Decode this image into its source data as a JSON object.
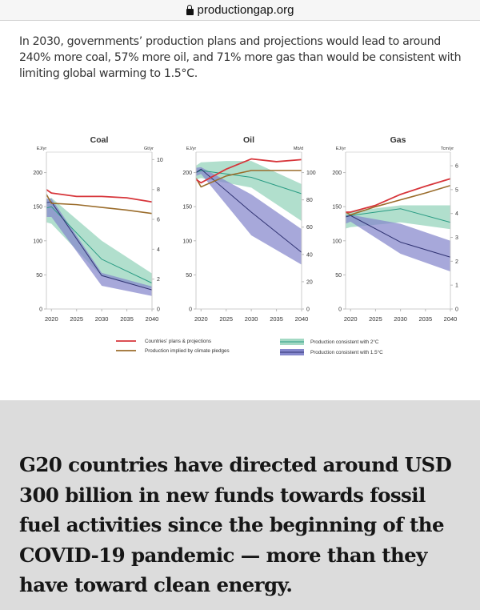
{
  "browser": {
    "url": "productiongap.org",
    "lock_icon": "lock-icon"
  },
  "intro_text": "In 2030, governments’ production plans and projections would lead to around 240% more coal, 57% more oil, and 71% more gas than would be consistent with limiting global warming to 1.5°C.",
  "headline": "G20 countries have directed around USD 300 billion in new funds towards fossil fuel activities since the beginning of the COVID-19 pandemic — more than they have toward clean energy.",
  "colors": {
    "plans": "#d7363b",
    "pledges": "#9b6d2c",
    "band_2c": "#a3d9c4",
    "line_2c": "#2a9c84",
    "band_15c": "#8587cc",
    "line_15c": "#2f3272",
    "gray_section": "#dcdcdc"
  },
  "legend": [
    {
      "key": "plans",
      "label": "Countries’ plans & projections"
    },
    {
      "key": "pledges",
      "label": "Production implied by climate pledges"
    },
    {
      "key": "2c",
      "label": "Production consistent with 2°C"
    },
    {
      "key": "15c",
      "label": "Production consistent with 1.5°C"
    }
  ],
  "chart_data": [
    {
      "type": "line",
      "title": "Coal",
      "left_unit": "EJ/yr",
      "right_unit": "Gt/yr",
      "xticks": [
        "2020",
        "2025",
        "2030",
        "2035",
        "2040"
      ],
      "xlim": [
        2019,
        2040
      ],
      "yticks": [
        0,
        50,
        100,
        150,
        200
      ],
      "ylim": [
        0,
        230
      ],
      "right_ticks": [
        0,
        2,
        4,
        6,
        8,
        10
      ],
      "right_to_left_factor": 21.9,
      "plans": {
        "x": [
          2019,
          2020,
          2025,
          2030,
          2035,
          2040
        ],
        "y": [
          175,
          170,
          165,
          165,
          163,
          157
        ]
      },
      "pledges": {
        "x": [
          2019,
          2020,
          2025,
          2030,
          2035,
          2040
        ],
        "y": [
          168,
          155,
          153,
          149,
          145,
          140
        ]
      },
      "c2": {
        "x": [
          2019,
          2020,
          2030,
          2040
        ],
        "y": [
          148,
          150,
          73,
          38
        ],
        "upper": [
          160,
          163,
          100,
          52
        ],
        "lower": [
          127,
          125,
          48,
          30
        ]
      },
      "c15": {
        "x": [
          2019,
          2020,
          2030,
          2040
        ],
        "y": [
          156,
          157,
          49,
          28
        ],
        "upper": [
          162,
          162,
          53,
          33
        ],
        "lower": [
          135,
          135,
          34,
          19
        ]
      }
    },
    {
      "type": "line",
      "title": "Oil",
      "left_unit": "EJ/yr",
      "right_unit": "Mb/d",
      "xticks": [
        "2020",
        "2025",
        "2030",
        "2035",
        "2040"
      ],
      "xlim": [
        2019,
        2040
      ],
      "yticks": [
        0,
        50,
        100,
        150,
        200
      ],
      "ylim": [
        0,
        230
      ],
      "right_ticks": [
        0,
        20,
        40,
        60,
        80,
        100
      ],
      "right_to_left_factor": 2,
      "plans": {
        "x": [
          2019,
          2020,
          2025,
          2030,
          2035,
          2040
        ],
        "y": [
          190,
          185,
          205,
          220,
          216,
          219
        ]
      },
      "pledges": {
        "x": [
          2019,
          2020,
          2025,
          2030,
          2035,
          2040
        ],
        "y": [
          192,
          179,
          195,
          203,
          203,
          203
        ]
      },
      "c2": {
        "x": [
          2019,
          2020,
          2025,
          2030,
          2040
        ],
        "y": [
          200,
          203,
          198,
          193,
          169
        ],
        "upper": [
          210,
          215,
          217,
          217,
          183
        ],
        "lower": [
          190,
          192,
          185,
          178,
          129
        ]
      },
      "c15": {
        "x": [
          2019,
          2020,
          2030,
          2040
        ],
        "y": [
          200,
          205,
          142,
          83
        ],
        "upper": [
          207,
          208,
          168,
          117
        ],
        "lower": [
          195,
          198,
          108,
          65
        ]
      }
    },
    {
      "type": "line",
      "title": "Gas",
      "left_unit": "EJ/yr",
      "right_unit": "Tcm/yr",
      "xticks": [
        "2020",
        "2025",
        "2030",
        "2035",
        "2040"
      ],
      "xlim": [
        2019,
        2040
      ],
      "yticks": [
        0,
        50,
        100,
        150,
        200
      ],
      "ylim": [
        0,
        230
      ],
      "right_ticks": [
        0,
        1,
        2,
        3,
        4,
        5,
        6
      ],
      "right_to_left_factor": 35,
      "plans": {
        "x": [
          2019,
          2020,
          2025,
          2030,
          2035,
          2040
        ],
        "y": [
          142,
          142,
          152,
          168,
          180,
          191
        ]
      },
      "pledges": {
        "x": [
          2019,
          2020,
          2025,
          2030,
          2035,
          2040
        ],
        "y": [
          142,
          138,
          150,
          160,
          170,
          181
        ]
      },
      "c2": {
        "x": [
          2019,
          2020,
          2030,
          2040
        ],
        "y": [
          136,
          137,
          147,
          127
        ],
        "upper": [
          140,
          143,
          152,
          152
        ],
        "lower": [
          118,
          120,
          127,
          117
        ]
      },
      "c15": {
        "x": [
          2019,
          2020,
          2030,
          2040
        ],
        "y": [
          135,
          137,
          98,
          76
        ],
        "upper": [
          138,
          138,
          125,
          100
        ],
        "lower": [
          125,
          128,
          81,
          55
        ]
      }
    }
  ]
}
